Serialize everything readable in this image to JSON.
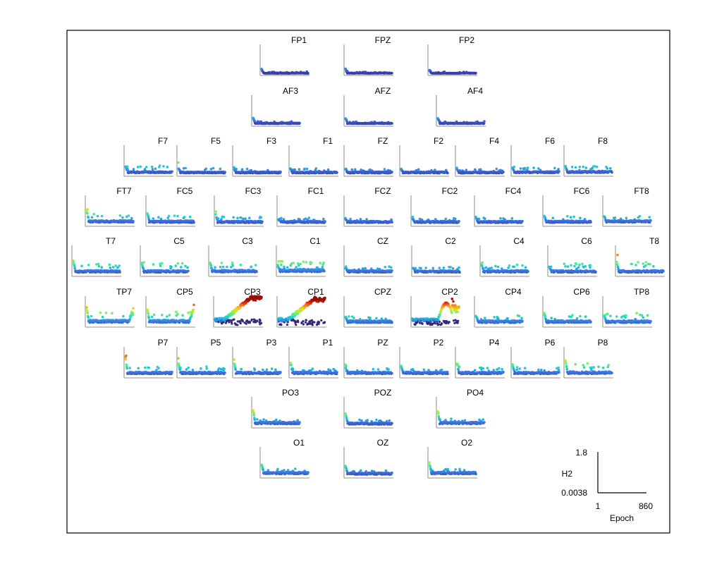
{
  "chart_data": {
    "type": "scatter",
    "title": "",
    "description_kind": "EEG channel topographic scatter grid",
    "xlabel": "Epoch",
    "ylabel": "H2",
    "xlim": [
      1,
      860
    ],
    "ylim": [
      0.0038,
      1.8
    ],
    "scale": {
      "x_label": "Epoch",
      "y_label": "H2",
      "x_min_label": "1",
      "x_max_label": "860",
      "y_min_label": "0.0038",
      "y_max_label": "1.8"
    },
    "colormap": [
      "#2a1858",
      "#3b3fa8",
      "#3d74e0",
      "#22b8e0",
      "#2ee8b0",
      "#8cf550",
      "#e8e020",
      "#f89020",
      "#e03010",
      "#9a0e05"
    ],
    "channels": [
      {
        "name": "FP1",
        "row": 0,
        "col": 0,
        "base": 0.03,
        "noise": 0.025,
        "spikes": 0.05,
        "early": 0.18
      },
      {
        "name": "FPZ",
        "row": 0,
        "col": 1,
        "base": 0.03,
        "noise": 0.02,
        "spikes": 0.04,
        "early": 0.16
      },
      {
        "name": "FP2",
        "row": 0,
        "col": 2,
        "base": 0.03,
        "noise": 0.02,
        "spikes": 0.04,
        "early": 0.14
      },
      {
        "name": "AF3",
        "row": 1,
        "col": 0,
        "base": 0.05,
        "noise": 0.03,
        "spikes": 0.06,
        "early": 0.25
      },
      {
        "name": "AFZ",
        "row": 1,
        "col": 1,
        "base": 0.05,
        "noise": 0.03,
        "spikes": 0.05,
        "early": 0.2
      },
      {
        "name": "AF4",
        "row": 1,
        "col": 2,
        "base": 0.05,
        "noise": 0.03,
        "spikes": 0.06,
        "early": 0.22
      },
      {
        "name": "F7",
        "row": 2,
        "col": 0,
        "base": 0.09,
        "noise": 0.05,
        "spikes": 0.22,
        "early": 0.3
      },
      {
        "name": "F5",
        "row": 2,
        "col": 1,
        "base": 0.08,
        "noise": 0.05,
        "spikes": 0.16,
        "early": 0.25
      },
      {
        "name": "F3",
        "row": 2,
        "col": 2,
        "base": 0.08,
        "noise": 0.05,
        "spikes": 0.12,
        "early": 0.22
      },
      {
        "name": "F1",
        "row": 2,
        "col": 3,
        "base": 0.08,
        "noise": 0.05,
        "spikes": 0.12,
        "early": 0.2
      },
      {
        "name": "FZ",
        "row": 2,
        "col": 4,
        "base": 0.08,
        "noise": 0.05,
        "spikes": 0.1,
        "early": 0.2
      },
      {
        "name": "F2",
        "row": 2,
        "col": 5,
        "base": 0.08,
        "noise": 0.05,
        "spikes": 0.1,
        "early": 0.2
      },
      {
        "name": "F4",
        "row": 2,
        "col": 6,
        "base": 0.08,
        "noise": 0.05,
        "spikes": 0.12,
        "early": 0.22
      },
      {
        "name": "F6",
        "row": 2,
        "col": 7,
        "base": 0.09,
        "noise": 0.05,
        "spikes": 0.15,
        "early": 0.25
      },
      {
        "name": "F8",
        "row": 2,
        "col": 8,
        "base": 0.1,
        "noise": 0.06,
        "spikes": 0.2,
        "early": 0.3
      },
      {
        "name": "FT7",
        "row": 3,
        "col": 0,
        "base": 0.12,
        "noise": 0.07,
        "spikes": 0.22,
        "early": 0.48
      },
      {
        "name": "FC5",
        "row": 3,
        "col": 1,
        "base": 0.11,
        "noise": 0.07,
        "spikes": 0.2,
        "early": 0.4
      },
      {
        "name": "FC3",
        "row": 3,
        "col": 2,
        "base": 0.1,
        "noise": 0.06,
        "spikes": 0.2,
        "early": 0.35
      },
      {
        "name": "FC1",
        "row": 3,
        "col": 3,
        "base": 0.1,
        "noise": 0.06,
        "spikes": 0.12,
        "early": 0.2
      },
      {
        "name": "FCZ",
        "row": 3,
        "col": 4,
        "base": 0.1,
        "noise": 0.06,
        "spikes": 0.12,
        "early": 0.22
      },
      {
        "name": "FC2",
        "row": 3,
        "col": 5,
        "base": 0.1,
        "noise": 0.06,
        "spikes": 0.12,
        "early": 0.22
      },
      {
        "name": "FC4",
        "row": 3,
        "col": 6,
        "base": 0.1,
        "noise": 0.06,
        "spikes": 0.15,
        "early": 0.25
      },
      {
        "name": "FC6",
        "row": 3,
        "col": 7,
        "base": 0.11,
        "noise": 0.07,
        "spikes": 0.2,
        "early": 0.3
      },
      {
        "name": "FT8",
        "row": 3,
        "col": 8,
        "base": 0.12,
        "noise": 0.07,
        "spikes": 0.2,
        "early": 0.3
      },
      {
        "name": "T7",
        "row": 4,
        "col": 0,
        "base": 0.12,
        "noise": 0.07,
        "spikes": 0.25,
        "early": 0.48
      },
      {
        "name": "C5",
        "row": 4,
        "col": 1,
        "base": 0.12,
        "noise": 0.07,
        "spikes": 0.28,
        "early": 0.4
      },
      {
        "name": "C3",
        "row": 4,
        "col": 2,
        "base": 0.13,
        "noise": 0.08,
        "spikes": 0.28,
        "early": 0.42
      },
      {
        "name": "C1",
        "row": 4,
        "col": 3,
        "base": 0.15,
        "noise": 0.1,
        "spikes": 0.28,
        "early": 0.32
      },
      {
        "name": "CZ",
        "row": 4,
        "col": 4,
        "base": 0.12,
        "noise": 0.07,
        "spikes": 0.15,
        "early": 0.25
      },
      {
        "name": "C2",
        "row": 4,
        "col": 5,
        "base": 0.12,
        "noise": 0.07,
        "spikes": 0.15,
        "early": 0.25
      },
      {
        "name": "C4",
        "row": 4,
        "col": 6,
        "base": 0.12,
        "noise": 0.07,
        "spikes": 0.2,
        "early": 0.38
      },
      {
        "name": "C6",
        "row": 4,
        "col": 7,
        "base": 0.12,
        "noise": 0.07,
        "spikes": 0.25,
        "early": 0.3
      },
      {
        "name": "T8",
        "row": 4,
        "col": 8,
        "base": 0.12,
        "noise": 0.07,
        "spikes": 0.35,
        "early": 0.42
      },
      {
        "name": "TP7",
        "row": 5,
        "col": 0,
        "base": 0.15,
        "noise": 0.09,
        "spikes": 0.3,
        "early": 0.6,
        "rampEnd": 0.42
      },
      {
        "name": "CP5",
        "row": 5,
        "col": 1,
        "base": 0.15,
        "noise": 0.09,
        "spikes": 0.3,
        "early": 0.55,
        "rampEnd": 0.52
      },
      {
        "name": "CP3",
        "row": 5,
        "col": 2,
        "base": 0.2,
        "noise": 0.1,
        "spikes": 0.2,
        "early": 0.3,
        "hot": 1.0
      },
      {
        "name": "CP1",
        "row": 5,
        "col": 3,
        "base": 0.2,
        "noise": 0.1,
        "spikes": 0.2,
        "early": 0.3,
        "hot": 0.95
      },
      {
        "name": "CPZ",
        "row": 5,
        "col": 4,
        "base": 0.14,
        "noise": 0.08,
        "spikes": 0.18,
        "early": 0.3
      },
      {
        "name": "CP2",
        "row": 5,
        "col": 5,
        "base": 0.2,
        "noise": 0.1,
        "spikes": 0.2,
        "early": 0.3,
        "warm": 0.55
      },
      {
        "name": "CP4",
        "row": 5,
        "col": 6,
        "base": 0.14,
        "noise": 0.08,
        "spikes": 0.2,
        "early": 0.35
      },
      {
        "name": "CP6",
        "row": 5,
        "col": 7,
        "base": 0.14,
        "noise": 0.08,
        "spikes": 0.25,
        "early": 0.42
      },
      {
        "name": "TP8",
        "row": 5,
        "col": 8,
        "base": 0.14,
        "noise": 0.08,
        "spikes": 0.3,
        "early": 0.35
      },
      {
        "name": "P7",
        "row": 6,
        "col": 0,
        "base": 0.12,
        "noise": 0.07,
        "spikes": 0.2,
        "early": 0.65
      },
      {
        "name": "P5",
        "row": 6,
        "col": 1,
        "base": 0.12,
        "noise": 0.07,
        "spikes": 0.2,
        "early": 0.48
      },
      {
        "name": "P3",
        "row": 6,
        "col": 2,
        "base": 0.12,
        "noise": 0.07,
        "spikes": 0.18,
        "early": 0.48
      },
      {
        "name": "P1",
        "row": 6,
        "col": 3,
        "base": 0.12,
        "noise": 0.07,
        "spikes": 0.15,
        "early": 0.45
      },
      {
        "name": "PZ",
        "row": 6,
        "col": 4,
        "base": 0.12,
        "noise": 0.07,
        "spikes": 0.15,
        "early": 0.3
      },
      {
        "name": "P2",
        "row": 6,
        "col": 5,
        "base": 0.12,
        "noise": 0.07,
        "spikes": 0.15,
        "early": 0.35
      },
      {
        "name": "P4",
        "row": 6,
        "col": 6,
        "base": 0.12,
        "noise": 0.07,
        "spikes": 0.2,
        "early": 0.45
      },
      {
        "name": "P6",
        "row": 6,
        "col": 7,
        "base": 0.12,
        "noise": 0.07,
        "spikes": 0.2,
        "early": 0.4
      },
      {
        "name": "P8",
        "row": 6,
        "col": 8,
        "base": 0.13,
        "noise": 0.08,
        "spikes": 0.28,
        "early": 0.55
      },
      {
        "name": "PO3",
        "row": 7,
        "col": 0,
        "base": 0.12,
        "noise": 0.07,
        "spikes": 0.12,
        "early": 0.55
      },
      {
        "name": "POZ",
        "row": 7,
        "col": 1,
        "base": 0.1,
        "noise": 0.06,
        "spikes": 0.12,
        "early": 0.45
      },
      {
        "name": "PO4",
        "row": 7,
        "col": 2,
        "base": 0.12,
        "noise": 0.07,
        "spikes": 0.12,
        "early": 0.5
      },
      {
        "name": "O1",
        "row": 8,
        "col": 0,
        "base": 0.12,
        "noise": 0.07,
        "spikes": 0.12,
        "early": 0.4
      },
      {
        "name": "OZ",
        "row": 8,
        "col": 1,
        "base": 0.1,
        "noise": 0.06,
        "spikes": 0.1,
        "early": 0.35
      },
      {
        "name": "O2",
        "row": 8,
        "col": 2,
        "base": 0.12,
        "noise": 0.07,
        "spikes": 0.12,
        "early": 0.45
      }
    ]
  }
}
